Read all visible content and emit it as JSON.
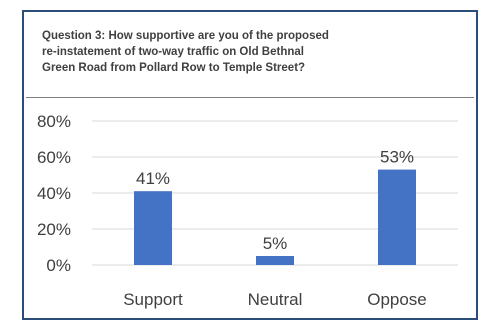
{
  "chart_data": {
    "type": "bar",
    "title_lines": [
      "Question 3: How supportive are you of the proposed",
      "re-instatement of two-way traffic on Old Bethnal",
      "Green Road from Pollard Row to Temple Street?"
    ],
    "categories": [
      "Support",
      "Neutral",
      "Oppose"
    ],
    "values": [
      41,
      5,
      53
    ],
    "data_labels": [
      "41%",
      "5%",
      "53%"
    ],
    "y_ticks": [
      0,
      20,
      40,
      60,
      80
    ],
    "y_tick_labels": [
      "0%",
      "20%",
      "40%",
      "60%",
      "80%"
    ],
    "ylim": [
      0,
      80
    ],
    "xlabel": "",
    "ylabel": "",
    "grid": true,
    "legend": "none",
    "colors": {
      "bar": "#4472c4",
      "grid": "#d9d9d9",
      "text": "#404040",
      "frame": "#2a4d7a"
    }
  }
}
